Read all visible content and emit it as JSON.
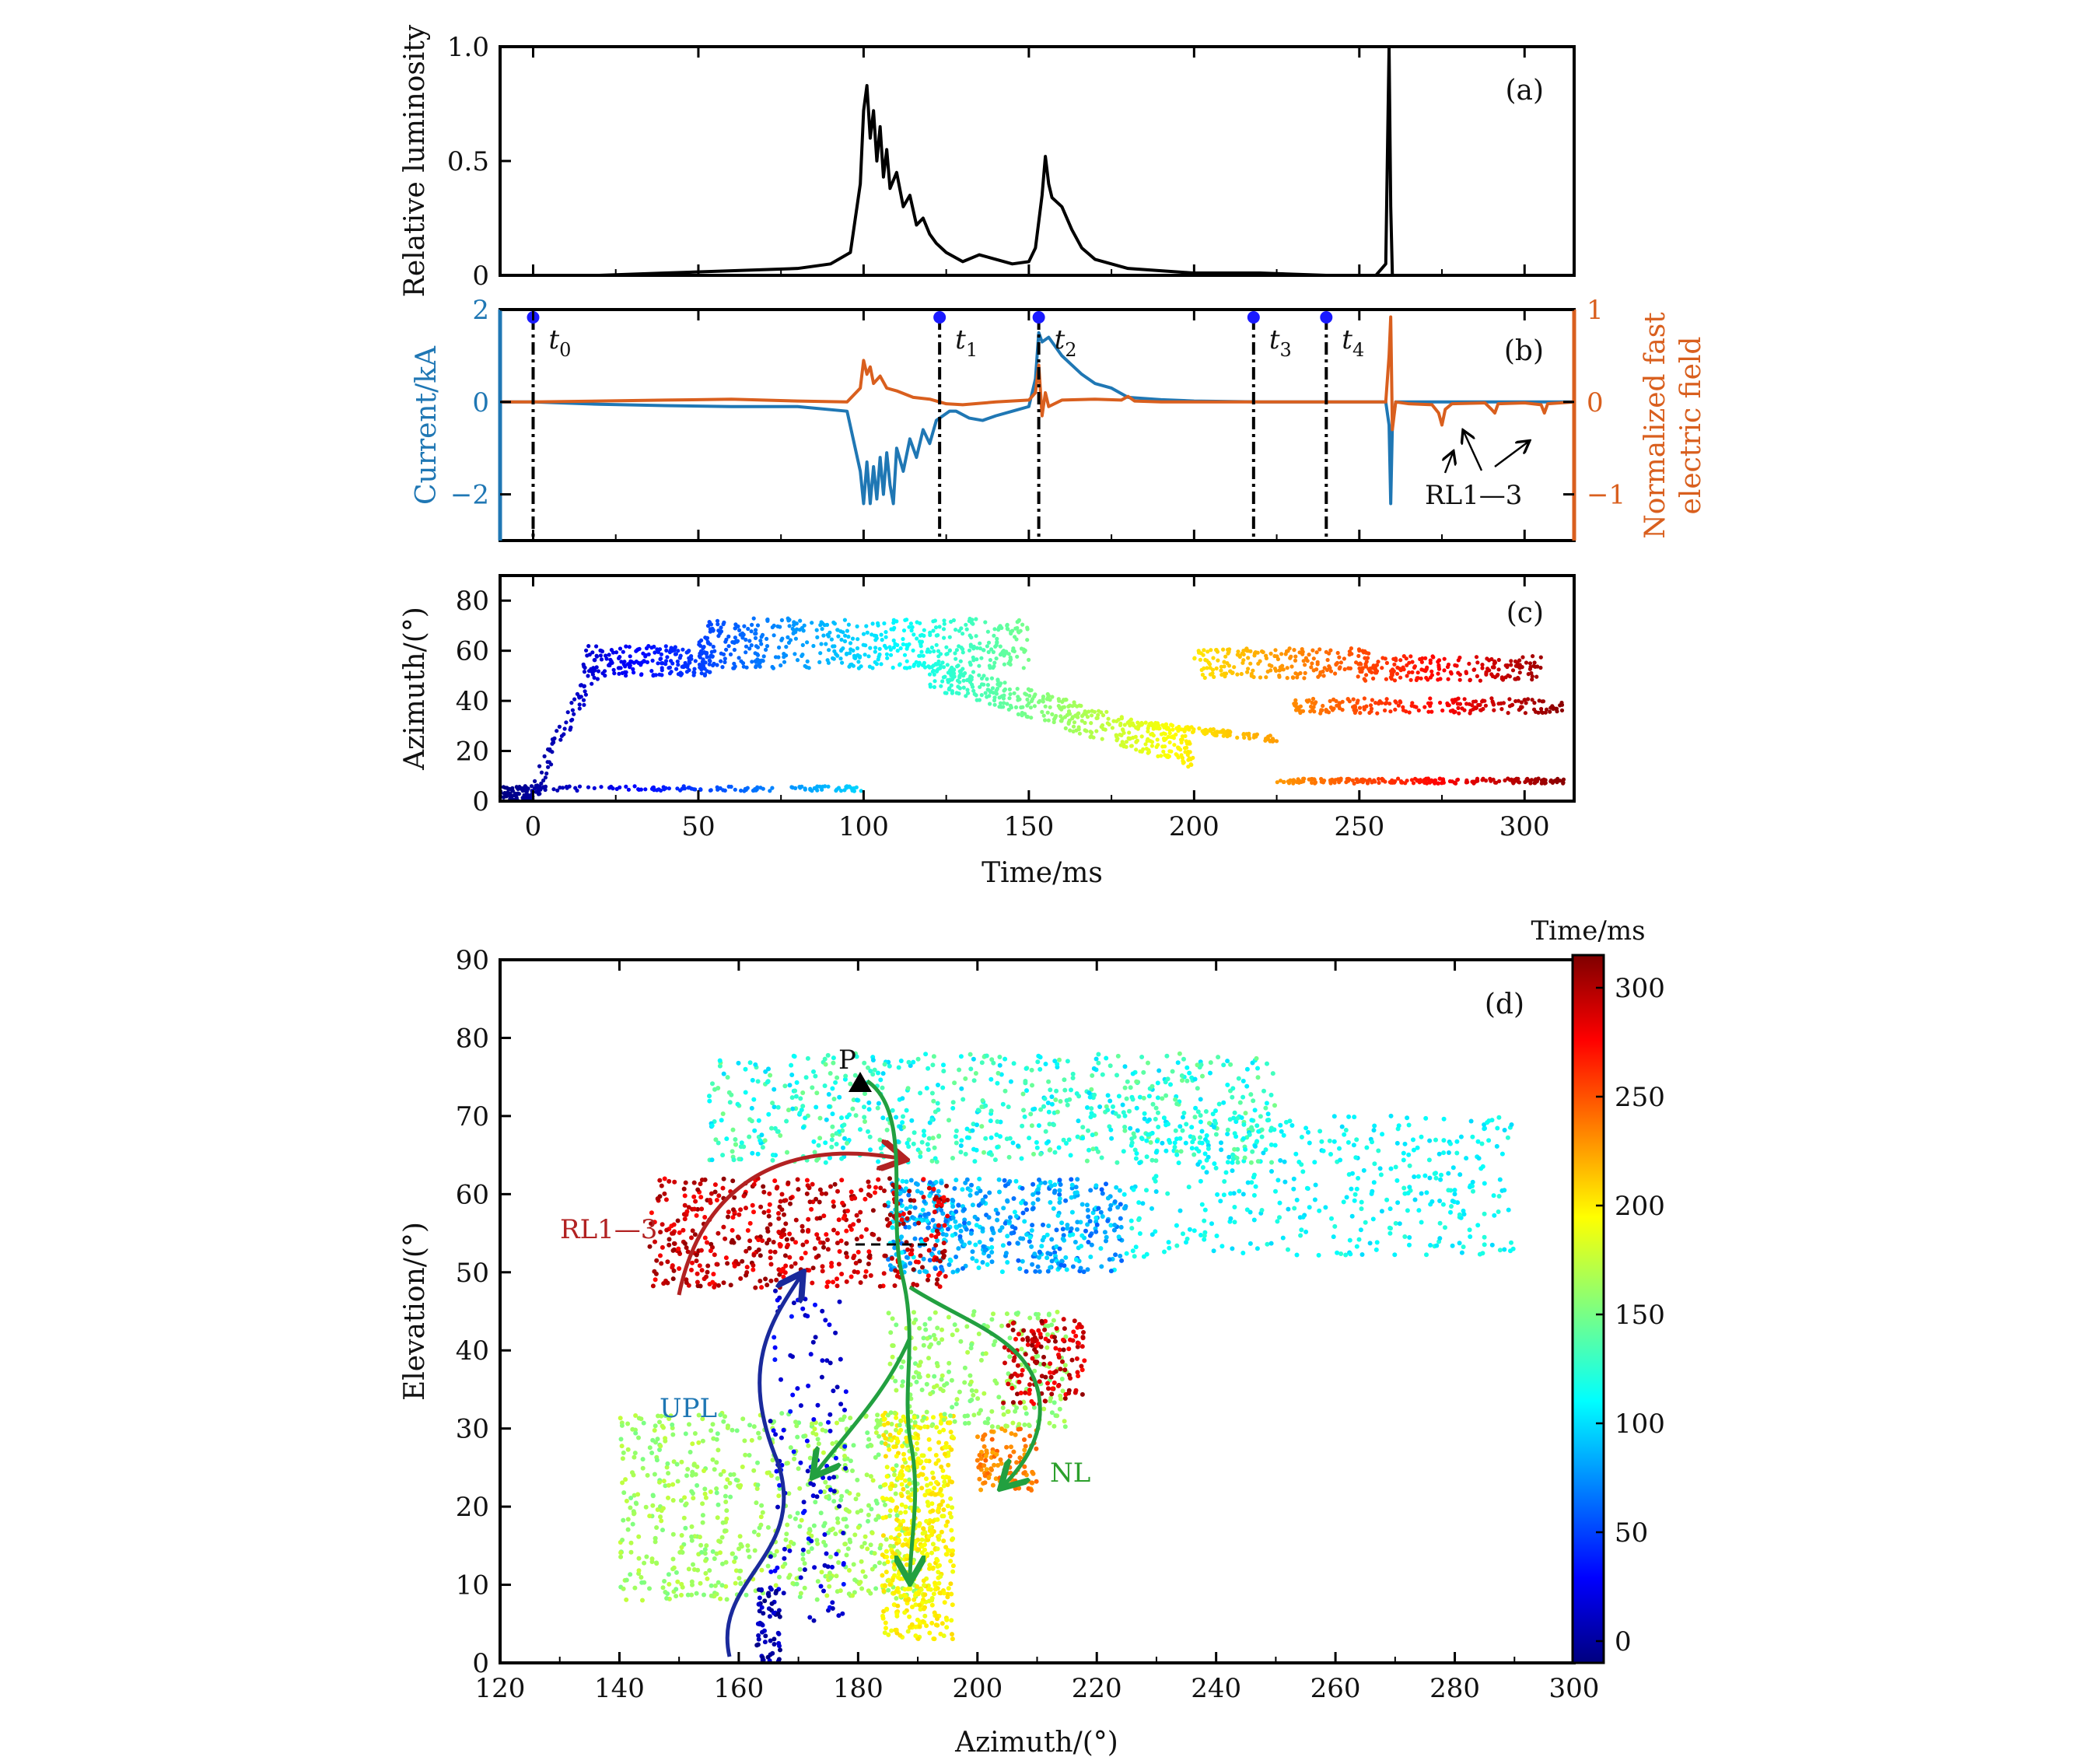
{
  "chart_data": [
    {
      "panel": "(a)",
      "type": "line",
      "title": "",
      "xlabel": "",
      "ylabel": "Relative luminosity",
      "xlim": [
        -10,
        315
      ],
      "ylim": [
        0,
        1.0
      ],
      "yticks": [
        0,
        0.5,
        1.0
      ],
      "ytick_labels": [
        "0",
        "0.5",
        "1.0"
      ],
      "series": [
        {
          "color": "#000000",
          "x": [
            -10,
            20,
            40,
            60,
            80,
            90,
            96,
            99,
            100,
            101,
            102,
            103,
            104,
            105,
            106,
            107,
            108,
            110,
            112,
            114,
            116,
            118,
            120,
            122,
            125,
            130,
            135,
            140,
            145,
            150,
            152,
            154,
            155,
            156,
            157,
            160,
            163,
            166,
            170,
            175,
            180,
            190,
            200,
            220,
            240,
            255,
            258,
            259,
            259.5,
            260,
            261,
            265,
            280,
            300,
            315
          ],
          "y": [
            0.0,
            0.0,
            0.01,
            0.02,
            0.03,
            0.05,
            0.1,
            0.4,
            0.72,
            0.83,
            0.6,
            0.72,
            0.5,
            0.65,
            0.43,
            0.55,
            0.38,
            0.45,
            0.3,
            0.35,
            0.22,
            0.25,
            0.18,
            0.14,
            0.1,
            0.06,
            0.09,
            0.07,
            0.05,
            0.06,
            0.12,
            0.35,
            0.52,
            0.4,
            0.34,
            0.3,
            0.2,
            0.12,
            0.07,
            0.05,
            0.03,
            0.02,
            0.01,
            0.01,
            0.0,
            0.0,
            0.05,
            1.0,
            0.3,
            0.0,
            0.0,
            0.0,
            0.0,
            0.0,
            0.0
          ]
        }
      ]
    },
    {
      "panel": "(b)",
      "type": "line",
      "title": "",
      "xlabel": "",
      "ylabel": "Current/kA",
      "ylabel_right": "Normalized fast electric field",
      "ylabel_right_lines": [
        "Normalized fast",
        "electric field"
      ],
      "xlim": [
        -10,
        315
      ],
      "ylim_left": [
        -3,
        2
      ],
      "ylim_right": [
        -1.5,
        1.0
      ],
      "yticks_left": [
        -2,
        0,
        2
      ],
      "ytick_labels_left": [
        "−2",
        "0",
        "2"
      ],
      "yticks_right": [
        -1,
        0,
        1
      ],
      "ytick_labels_right": [
        "−1",
        "0",
        "1"
      ],
      "series": [
        {
          "axis": "left",
          "color": "#1f77b4",
          "x": [
            -10,
            0,
            20,
            40,
            60,
            80,
            95,
            99,
            100,
            101,
            102,
            103,
            104,
            105,
            106,
            107,
            108,
            109,
            110,
            112,
            114,
            116,
            118,
            120,
            122,
            124,
            126,
            128,
            132,
            136,
            140,
            145,
            150,
            152,
            153,
            154,
            156,
            158,
            160,
            163,
            166,
            170,
            175,
            180,
            190,
            200,
            220,
            240,
            255,
            258,
            259,
            259.5,
            260,
            261,
            265,
            280,
            300,
            315
          ],
          "y": [
            0.0,
            0.0,
            -0.05,
            -0.08,
            -0.1,
            -0.1,
            -0.2,
            -1.5,
            -2.2,
            -1.3,
            -2.2,
            -1.4,
            -2.1,
            -1.2,
            -2.0,
            -1.1,
            -1.8,
            -2.2,
            -1.0,
            -1.5,
            -0.8,
            -1.2,
            -0.6,
            -0.9,
            -0.4,
            -0.3,
            -0.2,
            -0.2,
            -0.35,
            -0.4,
            -0.3,
            -0.2,
            -0.1,
            0.5,
            1.5,
            1.3,
            1.4,
            1.2,
            1.0,
            0.8,
            0.6,
            0.4,
            0.3,
            0.1,
            0.05,
            0.02,
            0.0,
            0.0,
            0.0,
            0.0,
            -0.5,
            -2.2,
            -0.5,
            0.0,
            0.0,
            0.0,
            0.0,
            0.0
          ]
        },
        {
          "axis": "right",
          "color": "#d95f1e",
          "x": [
            -10,
            0,
            20,
            40,
            60,
            80,
            95,
            99,
            100,
            101,
            102,
            103,
            105,
            107,
            110,
            115,
            120,
            125,
            130,
            140,
            150,
            152,
            153,
            154,
            155,
            156,
            160,
            170,
            178,
            180,
            182,
            190,
            200,
            220,
            240,
            255,
            258,
            259,
            259.5,
            260,
            261,
            265,
            272,
            274,
            275,
            276,
            278,
            288,
            290,
            291,
            292,
            300,
            305,
            306,
            307,
            315
          ],
          "y": [
            0.0,
            0.0,
            0.01,
            0.02,
            0.03,
            0.01,
            0.0,
            0.15,
            0.45,
            0.3,
            0.38,
            0.2,
            0.28,
            0.15,
            0.12,
            0.05,
            0.03,
            -0.02,
            -0.03,
            0.0,
            0.02,
            0.1,
            0.4,
            -0.15,
            0.1,
            -0.05,
            0.02,
            0.03,
            0.02,
            0.06,
            0.01,
            0.0,
            0.0,
            0.0,
            0.0,
            0.0,
            0.0,
            0.5,
            0.92,
            -0.3,
            0.0,
            -0.02,
            -0.03,
            -0.12,
            -0.25,
            -0.08,
            -0.02,
            -0.01,
            -0.08,
            -0.12,
            -0.02,
            -0.01,
            -0.03,
            -0.12,
            -0.02,
            0.0
          ]
        }
      ],
      "markers": [
        {
          "label": "t",
          "sub": "0",
          "x": 0
        },
        {
          "label": "t",
          "sub": "1",
          "x": 123
        },
        {
          "label": "t",
          "sub": "2",
          "x": 153
        },
        {
          "label": "t",
          "sub": "3",
          "x": 218
        },
        {
          "label": "t",
          "sub": "4",
          "x": 240
        }
      ],
      "annotation": "RL1—3"
    },
    {
      "panel": "(c)",
      "type": "scatter",
      "title": "",
      "xlabel": "Time/ms",
      "ylabel": "Azimuth/(°)",
      "xlim": [
        -10,
        315
      ],
      "ylim": [
        0,
        90
      ],
      "xticks": [
        0,
        50,
        100,
        150,
        200,
        250,
        300
      ],
      "xtick_labels": [
        "0",
        "50",
        "100",
        "150",
        "200",
        "250",
        "300"
      ],
      "yticks": [
        0,
        20,
        40,
        60,
        80
      ],
      "ytick_labels": [
        "0",
        "20",
        "40",
        "60",
        "80"
      ],
      "color_by": "time",
      "clusters": [
        {
          "x_range": [
            -10,
            2
          ],
          "y_center": 3,
          "y_spread": 3,
          "n": 80
        },
        {
          "x_range": [
            0,
            20
          ],
          "y_center": 20,
          "y_spread": 18,
          "n": 60,
          "trend": "rising"
        },
        {
          "x_range": [
            15,
            55
          ],
          "y_center": 56,
          "y_spread": 6,
          "n": 200
        },
        {
          "x_range": [
            50,
            150
          ],
          "y_center": 63,
          "y_spread": 10,
          "n": 500
        },
        {
          "x_range": [
            120,
            200
          ],
          "y_center": 35,
          "y_spread": 20,
          "n": 400,
          "trend": "falling"
        },
        {
          "x_range": [
            0,
            100
          ],
          "y_center": 5,
          "y_spread": 1,
          "n": 120
        },
        {
          "x_range": [
            180,
            225
          ],
          "y_center": 28,
          "y_spread": 4,
          "n": 120,
          "trend": "falling"
        },
        {
          "x_range": [
            200,
            255
          ],
          "y_center": 55,
          "y_spread": 6,
          "n": 200
        },
        {
          "x_range": [
            225,
            312
          ],
          "y_center": 8,
          "y_spread": 1,
          "n": 200
        },
        {
          "x_range": [
            230,
            312
          ],
          "y_center": 38,
          "y_spread": 3,
          "n": 200
        },
        {
          "x_range": [
            250,
            305
          ],
          "y_center": 53,
          "y_spread": 5,
          "n": 180
        }
      ]
    },
    {
      "panel": "(d)",
      "type": "scatter",
      "title": "",
      "xlabel": "Azimuth/(°)",
      "ylabel": "Elevation/(°)",
      "xlim": [
        120,
        300
      ],
      "ylim": [
        0,
        90
      ],
      "xticks": [
        120,
        140,
        160,
        180,
        200,
        220,
        240,
        260,
        280,
        300
      ],
      "xtick_labels": [
        "120",
        "140",
        "160",
        "180",
        "200",
        "220",
        "240",
        "260",
        "280",
        "300"
      ],
      "yticks": [
        0,
        10,
        20,
        30,
        40,
        50,
        60,
        70,
        80,
        90
      ],
      "ytick_labels": [
        "0",
        "10",
        "20",
        "30",
        "40",
        "50",
        "60",
        "70",
        "80",
        "90"
      ],
      "colorbar": {
        "label": "Time/ms",
        "range": [
          -10,
          315
        ],
        "ticks": [
          0,
          50,
          100,
          150,
          200,
          250,
          300
        ],
        "tick_labels": [
          "0",
          "50",
          "100",
          "150",
          "200",
          "250",
          "300"
        ]
      },
      "clusters": [
        {
          "x": [
            140,
            190
          ],
          "y": [
            8,
            32
          ],
          "t": [
            150,
            175
          ],
          "n": 700
        },
        {
          "x": [
            184,
            196
          ],
          "y": [
            3,
            32
          ],
          "t": [
            185,
            205
          ],
          "n": 500
        },
        {
          "x": [
            185,
            215
          ],
          "y": [
            30,
            45
          ],
          "t": [
            150,
            170
          ],
          "n": 250
        },
        {
          "x": [
            155,
            250
          ],
          "y": [
            64,
            78
          ],
          "t": [
            100,
            150
          ],
          "n": 700
        },
        {
          "x": [
            185,
            225
          ],
          "y": [
            50,
            62
          ],
          "t": [
            60,
            110
          ],
          "n": 500
        },
        {
          "x": [
            225,
            290
          ],
          "y": [
            52,
            70
          ],
          "t": [
            100,
            125
          ],
          "n": 400
        },
        {
          "x": [
            145,
            195
          ],
          "y": [
            48,
            62
          ],
          "t": [
            270,
            312
          ],
          "n": 500
        },
        {
          "x": [
            204,
            218
          ],
          "y": [
            33,
            44
          ],
          "t": [
            270,
            310
          ],
          "n": 150
        },
        {
          "x": [
            200,
            210
          ],
          "y": [
            22,
            30
          ],
          "t": [
            220,
            245
          ],
          "n": 100
        },
        {
          "x": [
            165,
            178
          ],
          "y": [
            5,
            48
          ],
          "t": [
            5,
            40
          ],
          "n": 120
        },
        {
          "x": [
            163,
            167
          ],
          "y": [
            0,
            10
          ],
          "t": [
            -10,
            20
          ],
          "n": 60
        }
      ],
      "marker_label": "P",
      "labels": [
        {
          "text": "RL1—3",
          "color": "#b22222"
        },
        {
          "text": "UPL",
          "color": "#1f77b4"
        },
        {
          "text": "NL",
          "color": "#2ca02c"
        }
      ]
    }
  ]
}
